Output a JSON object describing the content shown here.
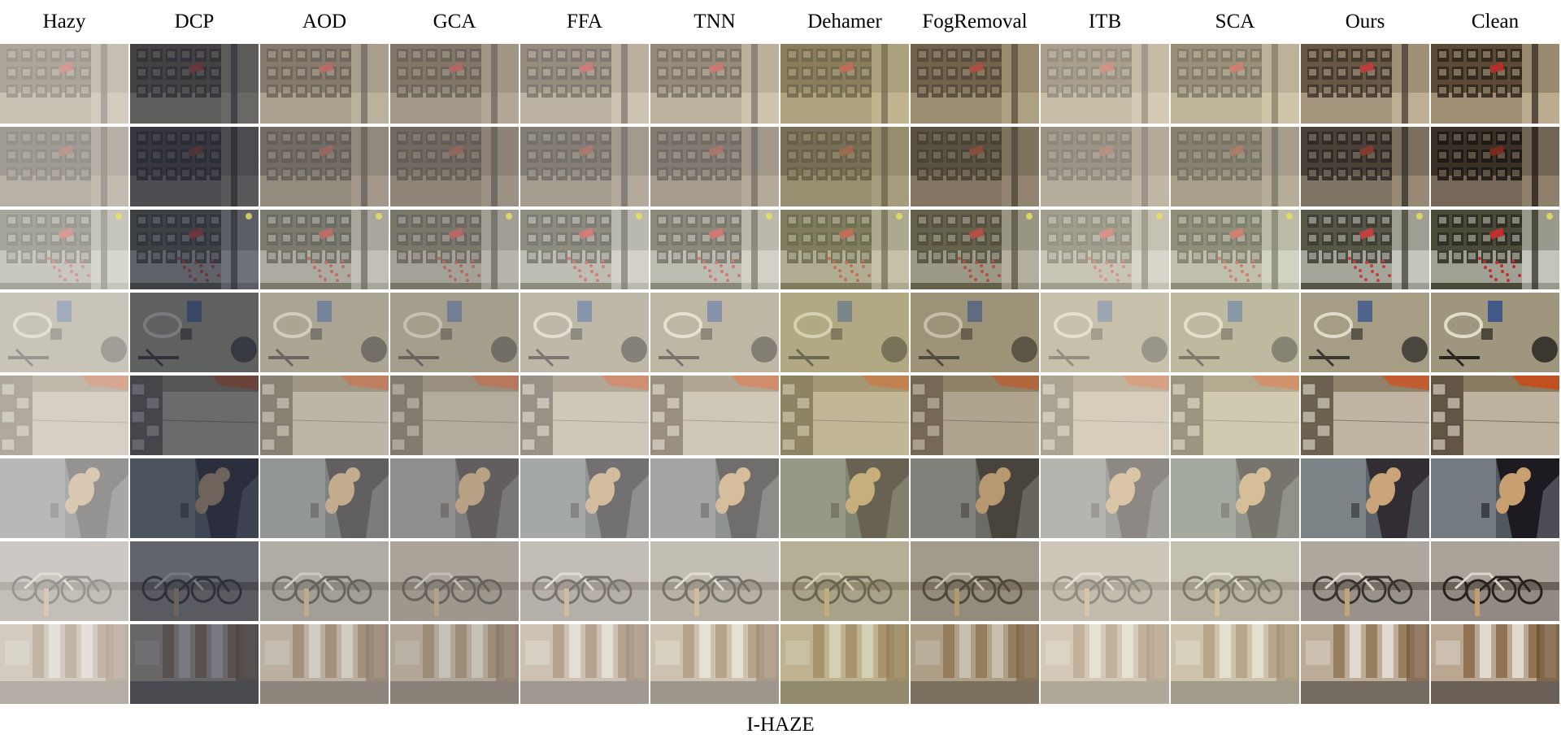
{
  "figure": {
    "columns": [
      "Hazy",
      "DCP",
      "AOD",
      "GCA",
      "FFA",
      "TNN",
      "Dehamer",
      "FogRemoval",
      "ITB",
      "SCA",
      "Ours",
      "Clean"
    ],
    "caption": "I-HAZE",
    "scenes": [
      {
        "id": "shelves-red-sign",
        "base": "#5b4a36",
        "accent": "#b5302a",
        "light": "#d8c8a8",
        "shade": "#2e241a"
      },
      {
        "id": "shelves-dark-floor",
        "base": "#3a3028",
        "accent": "#7a2a1e",
        "light": "#a89880",
        "shade": "#1a1612"
      },
      {
        "id": "shelves-christmas-tree",
        "base": "#4a4a38",
        "accent": "#c03030",
        "light": "#e8e8e0",
        "shade": "#2a2a20"
      },
      {
        "id": "gym-equipment",
        "base": "#6a6040",
        "accent": "#2a4a8a",
        "light": "#e0dcc8",
        "shade": "#2a2620"
      },
      {
        "id": "storage-boxes",
        "base": "#8a7a60",
        "accent": "#c05020",
        "light": "#e8e0d0",
        "shade": "#3a3028"
      },
      {
        "id": "teddy-bear",
        "base": "#50585e",
        "accent": "#c8a070",
        "light": "#a8b0b4",
        "shade": "#1e1a22"
      },
      {
        "id": "bicycles",
        "base": "#6a6258",
        "accent": "#c0a070",
        "light": "#dcd8d0",
        "shade": "#26221e"
      },
      {
        "id": "wooden-panels",
        "base": "#8a6a48",
        "accent": "#6a4a2a",
        "light": "#e8e4dc",
        "shade": "#2a2622"
      }
    ],
    "methods": {
      "Hazy": {
        "haze": 0.55,
        "tint": "#d8d4c8",
        "tint_amt": 0.1,
        "dark": 0.0
      },
      "DCP": {
        "haze": 0.05,
        "tint": "#3a4868",
        "tint_amt": 0.35,
        "dark": 0.35
      },
      "AOD": {
        "haze": 0.3,
        "tint": "#b0a890",
        "tint_amt": 0.1,
        "dark": 0.1
      },
      "GCA": {
        "haze": 0.25,
        "tint": "#a89888",
        "tint_amt": 0.2,
        "dark": 0.15
      },
      "FFA": {
        "haze": 0.4,
        "tint": "#d0ccc0",
        "tint_amt": 0.05,
        "dark": 0.0
      },
      "TNN": {
        "haze": 0.2,
        "tint": "#f0ecd8",
        "tint_amt": 0.25,
        "dark": 0.0
      },
      "Dehamer": {
        "haze": 0.15,
        "tint": "#c8c070",
        "tint_amt": 0.3,
        "dark": 0.05
      },
      "FogRemoval": {
        "haze": 0.1,
        "tint": "#8a7a50",
        "tint_amt": 0.25,
        "dark": 0.05
      },
      "ITB": {
        "haze": 0.35,
        "tint": "#f0e6c0",
        "tint_amt": 0.3,
        "dark": 0.0
      },
      "SCA": {
        "haze": 0.25,
        "tint": "#e8e8b0",
        "tint_amt": 0.25,
        "dark": 0.0
      },
      "Ours": {
        "haze": 0.05,
        "tint": "#c8c4bc",
        "tint_amt": 0.05,
        "dark": 0.0
      },
      "Clean": {
        "haze": 0.0,
        "tint": "#c8c4bc",
        "tint_amt": 0.0,
        "dark": 0.0
      }
    }
  }
}
